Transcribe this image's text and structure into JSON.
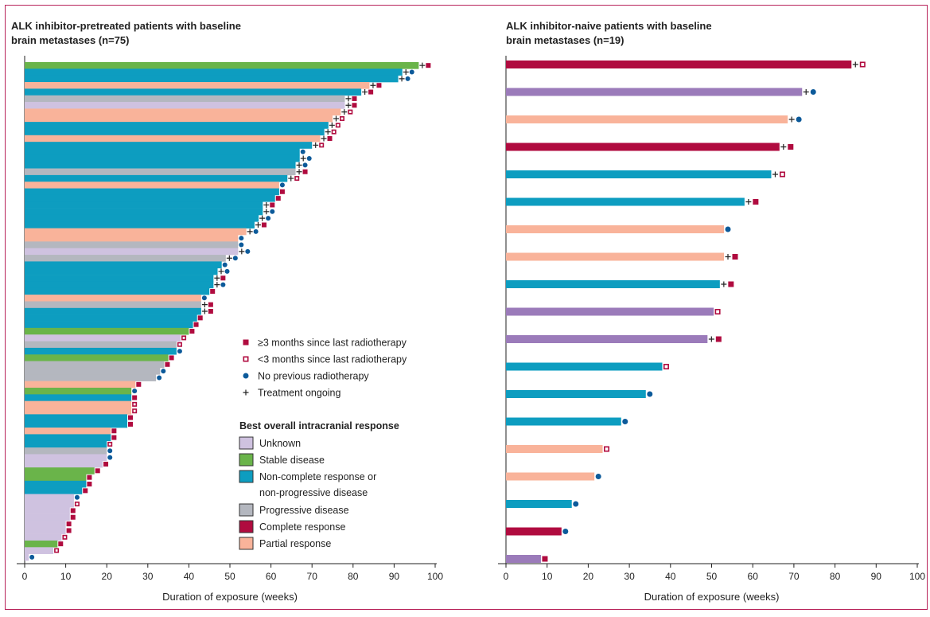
{
  "chart_data": [
    {
      "type": "bar",
      "orientation": "horizontal",
      "title_lines": [
        "ALK inhibitor-pretreated patients with baseline",
        "brain metastases (n=75)"
      ],
      "xlabel": "Duration of exposure (weeks)",
      "xlim": [
        0,
        100
      ],
      "xticks": [
        0,
        10,
        20,
        30,
        40,
        50,
        60,
        70,
        80,
        90,
        100
      ],
      "series_colors": {
        "UN": "#cfc2e0",
        "SD": "#6ab44a",
        "NCR": "#0d9dc0",
        "PD": "#b4b7bf",
        "CR": "#b00b3f",
        "PR": "#f9b39a"
      },
      "marker_legend": {
        "SQ": "≥3 months since last radiotherapy",
        "HSQ": "<3 months since last radiotherapy",
        "DOT": "No previous radiotherapy",
        "PLUS": "Treatment ongoing"
      },
      "legend_title": "Best overall intracranial response",
      "response_legend": [
        {
          "key": "UN",
          "lines": [
            "Unknown"
          ]
        },
        {
          "key": "SD",
          "lines": [
            "Stable disease"
          ]
        },
        {
          "key": "NCR",
          "lines": [
            "Non-complete response or",
            "non-progressive disease"
          ]
        },
        {
          "key": "PD",
          "lines": [
            "Progressive disease"
          ]
        },
        {
          "key": "CR",
          "lines": [
            "Complete response"
          ]
        },
        {
          "key": "PR",
          "lines": [
            "Partial response"
          ]
        }
      ],
      "bars": [
        {
          "value": 96,
          "response": "SD",
          "marker": "SQ",
          "ongoing": true
        },
        {
          "value": 92,
          "response": "NCR",
          "marker": "DOT",
          "ongoing": true
        },
        {
          "value": 91,
          "response": "NCR",
          "marker": "DOT",
          "ongoing": true
        },
        {
          "value": 84,
          "response": "PR",
          "marker": "SQ",
          "ongoing": true
        },
        {
          "value": 82,
          "response": "NCR",
          "marker": "SQ",
          "ongoing": true
        },
        {
          "value": 78,
          "response": "PD",
          "marker": "SQ",
          "ongoing": true
        },
        {
          "value": 78,
          "response": "UN",
          "marker": "SQ",
          "ongoing": true
        },
        {
          "value": 77,
          "response": "PR",
          "marker": "HSQ",
          "ongoing": true
        },
        {
          "value": 75,
          "response": "PR",
          "marker": "HSQ",
          "ongoing": true
        },
        {
          "value": 74,
          "response": "NCR",
          "marker": "HSQ",
          "ongoing": true
        },
        {
          "value": 73,
          "response": "NCR",
          "marker": "HSQ",
          "ongoing": true
        },
        {
          "value": 72,
          "response": "PR",
          "marker": "SQ",
          "ongoing": true
        },
        {
          "value": 70,
          "response": "NCR",
          "marker": "HSQ",
          "ongoing": true
        },
        {
          "value": 67,
          "response": "NCR",
          "marker": "DOT",
          "ongoing": false
        },
        {
          "value": 67,
          "response": "NCR",
          "marker": "DOT",
          "ongoing": true
        },
        {
          "value": 66,
          "response": "NCR",
          "marker": "DOT",
          "ongoing": true
        },
        {
          "value": 66,
          "response": "PD",
          "marker": "SQ",
          "ongoing": true
        },
        {
          "value": 64,
          "response": "NCR",
          "marker": "HSQ",
          "ongoing": true
        },
        {
          "value": 62,
          "response": "PR",
          "marker": "DOT",
          "ongoing": false
        },
        {
          "value": 62,
          "response": "NCR",
          "marker": "SQ",
          "ongoing": false
        },
        {
          "value": 61,
          "response": "NCR",
          "marker": "SQ",
          "ongoing": false
        },
        {
          "value": 58,
          "response": "NCR",
          "marker": "SQ",
          "ongoing": true
        },
        {
          "value": 58,
          "response": "NCR",
          "marker": "DOT",
          "ongoing": true
        },
        {
          "value": 57,
          "response": "NCR",
          "marker": "DOT",
          "ongoing": true
        },
        {
          "value": 56,
          "response": "NCR",
          "marker": "SQ",
          "ongoing": true
        },
        {
          "value": 54,
          "response": "PR",
          "marker": "DOT",
          "ongoing": true
        },
        {
          "value": 52,
          "response": "PR",
          "marker": "DOT",
          "ongoing": false
        },
        {
          "value": 52,
          "response": "PD",
          "marker": "DOT",
          "ongoing": false
        },
        {
          "value": 52,
          "response": "UN",
          "marker": "DOT",
          "ongoing": true
        },
        {
          "value": 49,
          "response": "PD",
          "marker": "DOT",
          "ongoing": true
        },
        {
          "value": 48,
          "response": "NCR",
          "marker": "DOT",
          "ongoing": false
        },
        {
          "value": 47,
          "response": "NCR",
          "marker": "DOT",
          "ongoing": true
        },
        {
          "value": 46,
          "response": "NCR",
          "marker": "SQ",
          "ongoing": true
        },
        {
          "value": 46,
          "response": "NCR",
          "marker": "DOT",
          "ongoing": true
        },
        {
          "value": 45,
          "response": "NCR",
          "marker": "SQ",
          "ongoing": false
        },
        {
          "value": 43,
          "response": "PR",
          "marker": "DOT",
          "ongoing": false
        },
        {
          "value": 43,
          "response": "PD",
          "marker": "SQ",
          "ongoing": true
        },
        {
          "value": 43,
          "response": "NCR",
          "marker": "SQ",
          "ongoing": true
        },
        {
          "value": 42,
          "response": "NCR",
          "marker": "SQ",
          "ongoing": false
        },
        {
          "value": 41,
          "response": "NCR",
          "marker": "SQ",
          "ongoing": false
        },
        {
          "value": 40,
          "response": "SD",
          "marker": "SQ",
          "ongoing": false
        },
        {
          "value": 38,
          "response": "UN",
          "marker": "HSQ",
          "ongoing": false
        },
        {
          "value": 37,
          "response": "PD",
          "marker": "HSQ",
          "ongoing": false
        },
        {
          "value": 37,
          "response": "NCR",
          "marker": "DOT",
          "ongoing": false
        },
        {
          "value": 35,
          "response": "SD",
          "marker": "SQ",
          "ongoing": false
        },
        {
          "value": 34,
          "response": "PD",
          "marker": "SQ",
          "ongoing": false
        },
        {
          "value": 33,
          "response": "PD",
          "marker": "DOT",
          "ongoing": false
        },
        {
          "value": 32,
          "response": "PD",
          "marker": "DOT",
          "ongoing": false
        },
        {
          "value": 27,
          "response": "PR",
          "marker": "SQ",
          "ongoing": false
        },
        {
          "value": 26,
          "response": "SD",
          "marker": "DOT",
          "ongoing": false
        },
        {
          "value": 26,
          "response": "NCR",
          "marker": "SQ",
          "ongoing": false
        },
        {
          "value": 26,
          "response": "PR",
          "marker": "HSQ",
          "ongoing": false
        },
        {
          "value": 26,
          "response": "PR",
          "marker": "HSQ",
          "ongoing": false
        },
        {
          "value": 25,
          "response": "NCR",
          "marker": "SQ",
          "ongoing": false
        },
        {
          "value": 25,
          "response": "NCR",
          "marker": "SQ",
          "ongoing": false
        },
        {
          "value": 21,
          "response": "PR",
          "marker": "SQ",
          "ongoing": false
        },
        {
          "value": 21,
          "response": "NCR",
          "marker": "SQ",
          "ongoing": false
        },
        {
          "value": 20,
          "response": "NCR",
          "marker": "HSQ",
          "ongoing": false
        },
        {
          "value": 20,
          "response": "PD",
          "marker": "DOT",
          "ongoing": false
        },
        {
          "value": 20,
          "response": "UN",
          "marker": "DOT",
          "ongoing": false
        },
        {
          "value": 19,
          "response": "UN",
          "marker": "SQ",
          "ongoing": false
        },
        {
          "value": 17,
          "response": "SD",
          "marker": "SQ",
          "ongoing": false
        },
        {
          "value": 15,
          "response": "SD",
          "marker": "SQ",
          "ongoing": false
        },
        {
          "value": 15,
          "response": "NCR",
          "marker": "SQ",
          "ongoing": false
        },
        {
          "value": 14,
          "response": "NCR",
          "marker": "SQ",
          "ongoing": false
        },
        {
          "value": 12,
          "response": "UN",
          "marker": "DOT",
          "ongoing": false
        },
        {
          "value": 12,
          "response": "UN",
          "marker": "HSQ",
          "ongoing": false
        },
        {
          "value": 11,
          "response": "UN",
          "marker": "SQ",
          "ongoing": false
        },
        {
          "value": 11,
          "response": "UN",
          "marker": "SQ",
          "ongoing": false
        },
        {
          "value": 10,
          "response": "UN",
          "marker": "SQ",
          "ongoing": false
        },
        {
          "value": 10,
          "response": "UN",
          "marker": "SQ",
          "ongoing": false
        },
        {
          "value": 9,
          "response": "UN",
          "marker": "HSQ",
          "ongoing": false
        },
        {
          "value": 8,
          "response": "SD",
          "marker": "SQ",
          "ongoing": false
        },
        {
          "value": 7,
          "response": "UN",
          "marker": "HSQ",
          "ongoing": false
        },
        {
          "value": 1,
          "response": "UN",
          "marker": "DOT",
          "ongoing": false
        }
      ]
    },
    {
      "type": "bar",
      "orientation": "horizontal",
      "title_lines": [
        "ALK inhibitor-naive patients with baseline",
        "brain metastases (n=19)"
      ],
      "xlabel": "Duration of exposure (weeks)",
      "xlim": [
        0,
        100
      ],
      "xticks": [
        0,
        10,
        20,
        30,
        40,
        50,
        60,
        70,
        80,
        90,
        100
      ],
      "series_colors": {
        "UN": "#9b7bba",
        "NCR": "#0d9dc0",
        "CR": "#b00b3f",
        "PR": "#f9b39a"
      },
      "bars": [
        {
          "value": 84,
          "response": "CR",
          "marker": "HSQ",
          "ongoing": true
        },
        {
          "value": 72,
          "response": "UN",
          "marker": "DOT",
          "ongoing": true
        },
        {
          "value": 68.5,
          "response": "PR",
          "marker": "DOT",
          "ongoing": true
        },
        {
          "value": 66.5,
          "response": "CR",
          "marker": "SQ",
          "ongoing": true
        },
        {
          "value": 64.5,
          "response": "NCR",
          "marker": "HSQ",
          "ongoing": true
        },
        {
          "value": 58,
          "response": "NCR",
          "marker": "SQ",
          "ongoing": true
        },
        {
          "value": 53,
          "response": "PR",
          "marker": "DOT",
          "ongoing": false
        },
        {
          "value": 53,
          "response": "PR",
          "marker": "SQ",
          "ongoing": true
        },
        {
          "value": 52,
          "response": "NCR",
          "marker": "SQ",
          "ongoing": true
        },
        {
          "value": 50.5,
          "response": "UN",
          "marker": "HSQ",
          "ongoing": false
        },
        {
          "value": 49,
          "response": "UN",
          "marker": "SQ",
          "ongoing": true
        },
        {
          "value": 38,
          "response": "NCR",
          "marker": "HSQ",
          "ongoing": false
        },
        {
          "value": 34,
          "response": "NCR",
          "marker": "DOT",
          "ongoing": false
        },
        {
          "value": 28,
          "response": "NCR",
          "marker": "DOT",
          "ongoing": false
        },
        {
          "value": 23.5,
          "response": "PR",
          "marker": "HSQ",
          "ongoing": false
        },
        {
          "value": 21.5,
          "response": "PR",
          "marker": "DOT",
          "ongoing": false
        },
        {
          "value": 16,
          "response": "NCR",
          "marker": "DOT",
          "ongoing": false
        },
        {
          "value": 13.5,
          "response": "CR",
          "marker": "DOT",
          "ongoing": false
        },
        {
          "value": 8.5,
          "response": "UN",
          "marker": "SQ",
          "ongoing": false
        }
      ]
    }
  ]
}
